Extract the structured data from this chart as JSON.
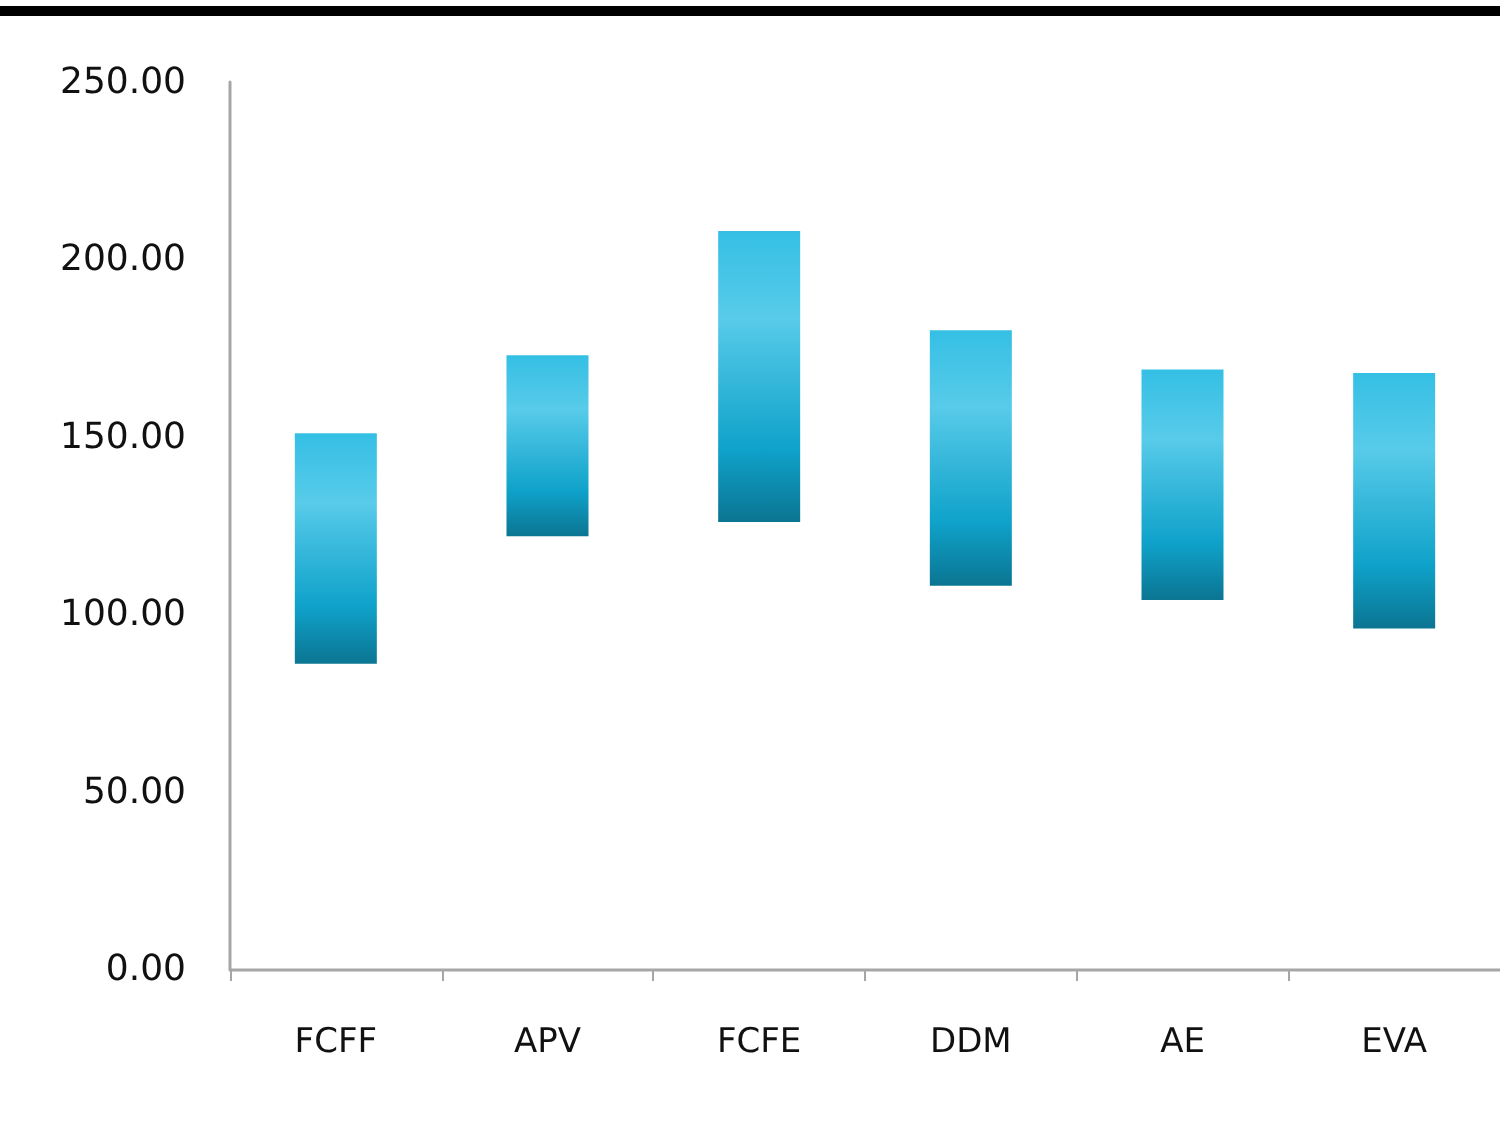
{
  "chart_data": {
    "type": "bar",
    "categories": [
      "FCFF",
      "APV",
      "FCFE",
      "DDM",
      "AE",
      "EVA"
    ],
    "base": [
      86,
      122,
      126,
      108,
      104,
      96
    ],
    "values": [
      65,
      51,
      82,
      72,
      65,
      72
    ],
    "color": "#11b4e0",
    "ylim": [
      0,
      250
    ],
    "yticks": [
      {
        "value": 0,
        "label": "0.00"
      },
      {
        "value": 50,
        "label": "50.00"
      },
      {
        "value": 100,
        "label": "100.00"
      },
      {
        "value": 150,
        "label": "150.00"
      },
      {
        "value": 200,
        "label": "200.00"
      },
      {
        "value": 250,
        "label": "250.00"
      }
    ],
    "grid": false
  }
}
